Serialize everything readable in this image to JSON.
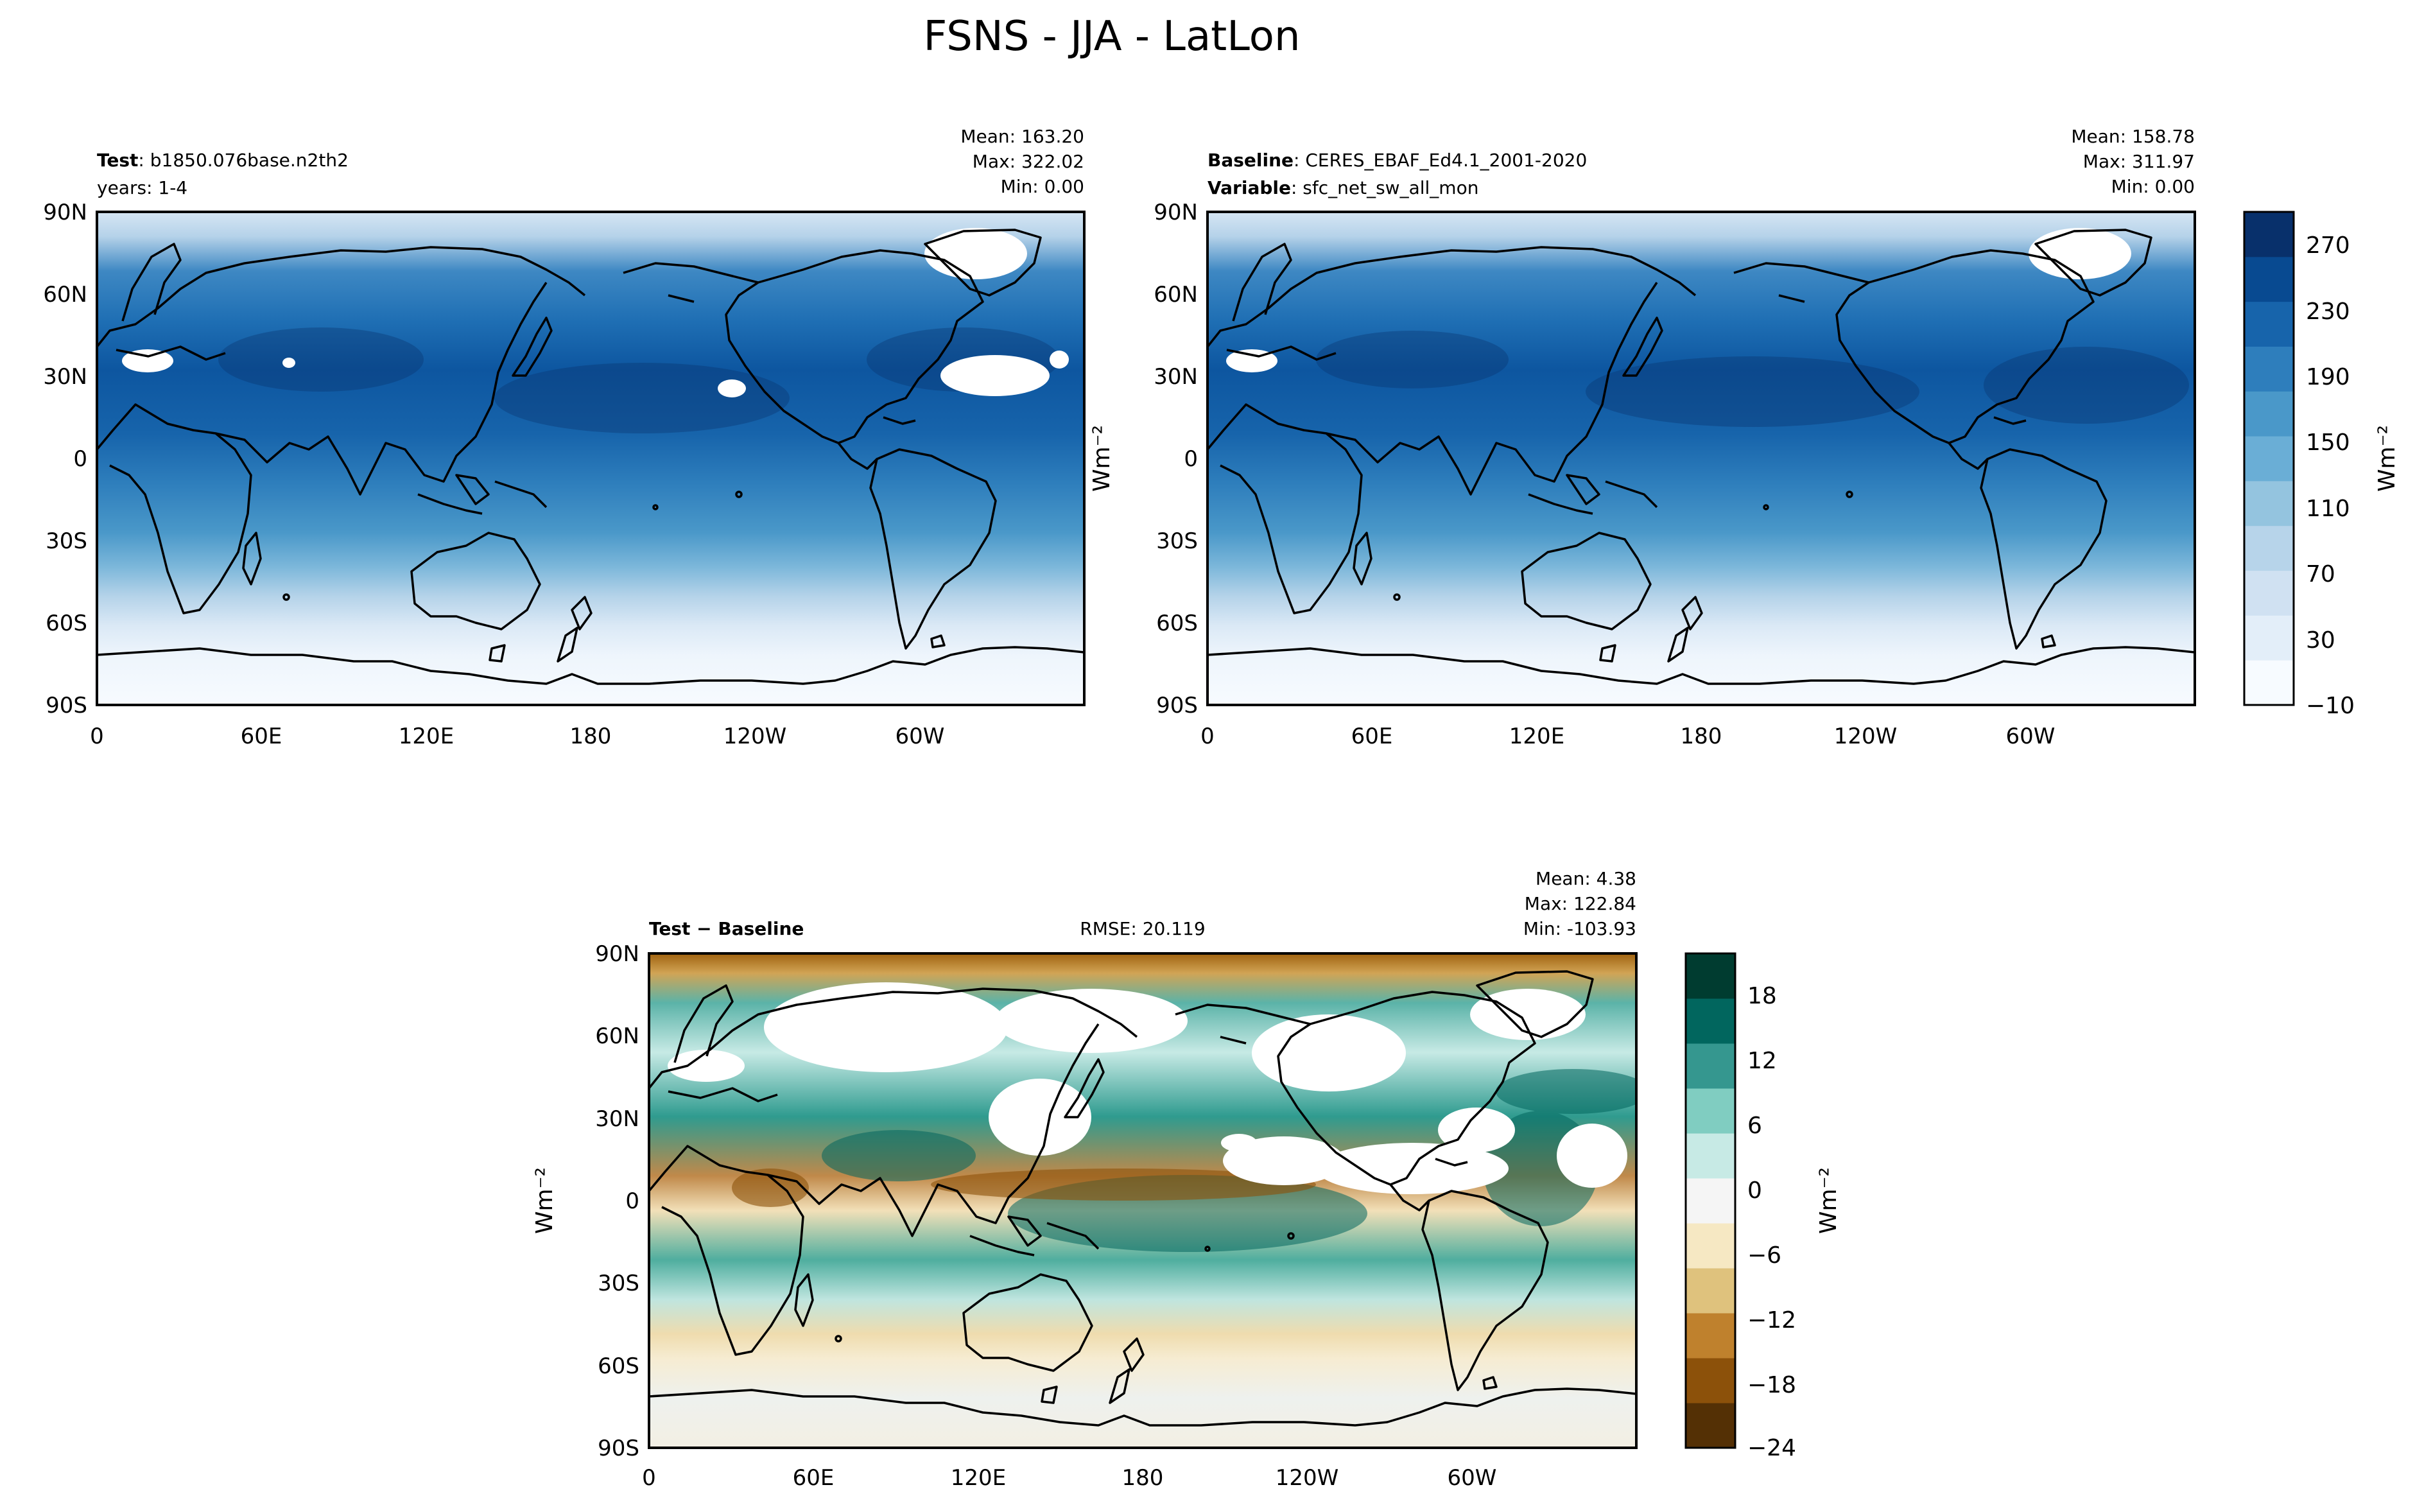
{
  "figure": {
    "title": "FSNS - JJA - LatLon"
  },
  "axes": {
    "lat_ticks": [
      "90N",
      "60N",
      "30N",
      "0",
      "30S",
      "60S",
      "90S"
    ],
    "lon_ticks": [
      "0",
      "60E",
      "120E",
      "180",
      "120W",
      "60W"
    ]
  },
  "test_panel": {
    "label_bold": "Test",
    "label_value": ": b1850.076base.n2th2",
    "line2": "years: 1-4",
    "stats": [
      "Mean: 163.20",
      "Max: 322.02",
      "Min:  0.00"
    ]
  },
  "baseline_panel": {
    "label_bold": "Baseline",
    "label_value": ": CERES_EBAF_Ed4.1_2001-2020",
    "line2_bold": "Variable",
    "line2_value": ": sfc_net_sw_all_mon",
    "stats": [
      "Mean: 158.78",
      "Max: 311.97",
      "Min:  0.00"
    ]
  },
  "diff_panel": {
    "label": "Test − Baseline",
    "rmse": "RMSE: 20.119",
    "stats": [
      "Mean:  4.38",
      "Max: 122.84",
      "Min: -103.93"
    ]
  },
  "colorbar_top": {
    "label": "Wm⁻²",
    "ticks": [
      "270",
      "230",
      "190",
      "150",
      "110",
      "70",
      "30",
      "−10"
    ]
  },
  "colorbar_diff": {
    "label": "Wm⁻²",
    "ticks": [
      "18",
      "12",
      "6",
      "0",
      "−6",
      "−12",
      "−18",
      "−24"
    ]
  },
  "colors": {
    "blues": [
      "#f7fbff",
      "#e3eef9",
      "#d0e1f2",
      "#b7d4ea",
      "#94c4df",
      "#6aaed6",
      "#4a98c9",
      "#2e7ebc",
      "#1764ab",
      "#084a91",
      "#08306b"
    ],
    "brbg": [
      "#543005",
      "#8c510a",
      "#bf812d",
      "#dfc27d",
      "#f6e8c3",
      "#f5f5f5",
      "#c7eae5",
      "#80cdc1",
      "#35978f",
      "#01665e",
      "#003c30"
    ]
  }
}
